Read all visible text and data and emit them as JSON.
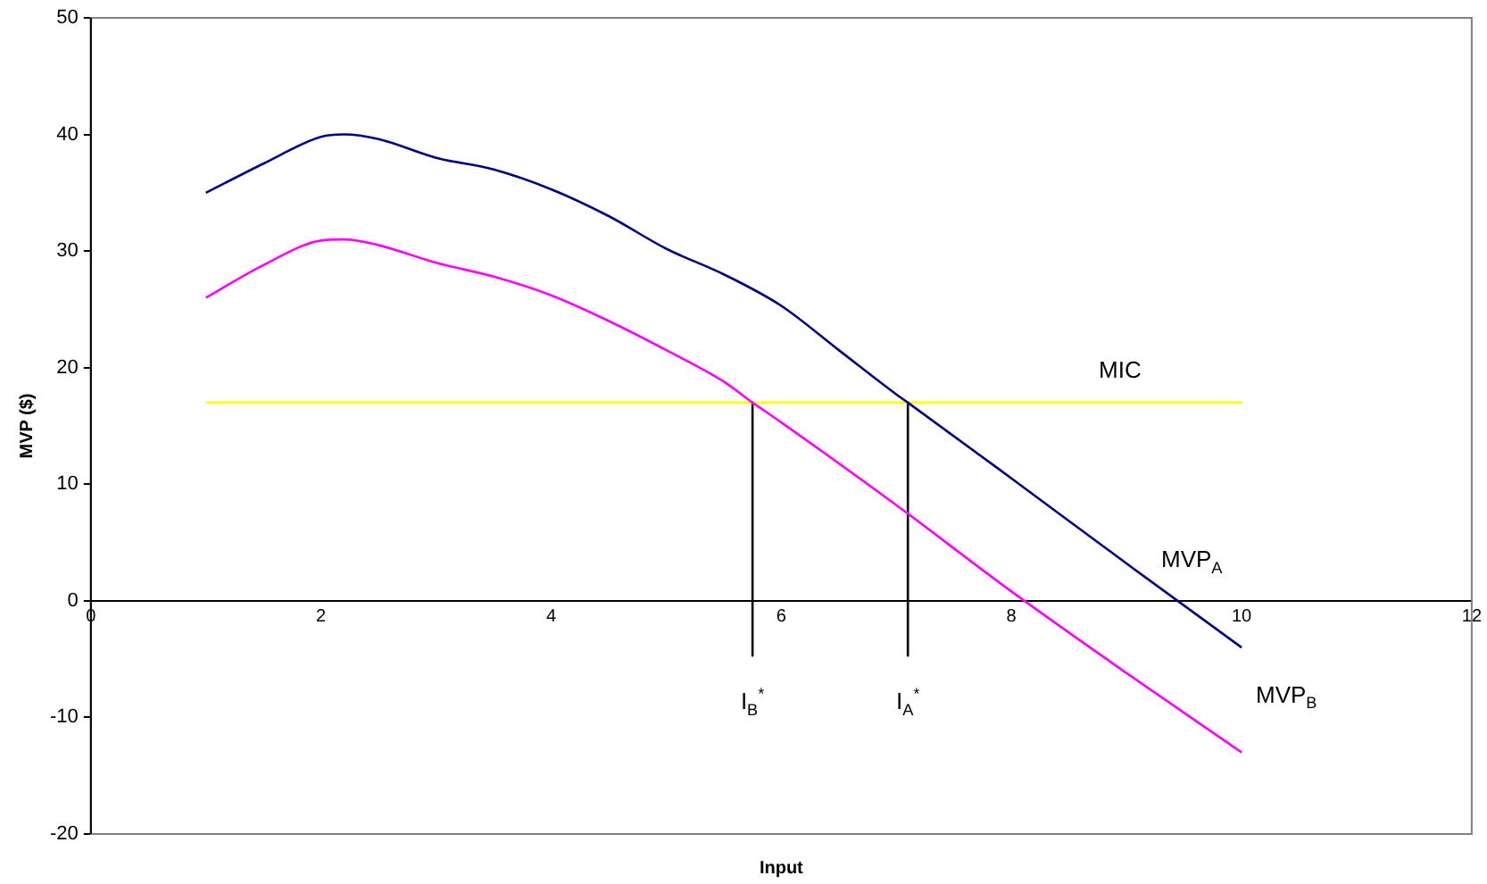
{
  "chart_data": {
    "type": "line",
    "xlabel": "Input",
    "ylabel": "MVP ($)",
    "xlim": [
      0,
      12
    ],
    "xticks": [
      0,
      2,
      4,
      6,
      8,
      10,
      12
    ],
    "ylim": [
      -20,
      50
    ],
    "yticks": [
      -20,
      -10,
      0,
      10,
      20,
      30,
      40,
      50
    ],
    "grid": false,
    "legend": false,
    "marker": "none",
    "series": [
      {
        "name": "MVP$_{A}$",
        "color": "#000080",
        "x": [
          1,
          1.5,
          2,
          2.2,
          2.5,
          3,
          3.5,
          4,
          4.5,
          5,
          5.5,
          6,
          6.5,
          7,
          7.1,
          8,
          9,
          10
        ],
        "values": [
          35,
          37.5,
          39.8,
          40,
          39.6,
          38,
          37,
          35.3,
          33,
          30.2,
          28,
          25.3,
          21.5,
          17.7,
          17,
          10.5,
          3.2,
          -4
        ]
      },
      {
        "name": "MVP$_{B}$",
        "color": "#ff00ff",
        "x": [
          1,
          1.5,
          2,
          2.2,
          2.5,
          3,
          3.5,
          4,
          4.5,
          5,
          5.5,
          5.75,
          6,
          7,
          8,
          9,
          10
        ],
        "values": [
          26,
          28.8,
          30.9,
          31,
          30.5,
          29,
          27.8,
          26.2,
          24,
          21.5,
          18.8,
          17,
          15.3,
          8.2,
          0.8,
          -6.2,
          -13
        ]
      },
      {
        "name": "MIC",
        "color": "#ffff00",
        "x": [
          1,
          10
        ],
        "values": [
          17,
          17
        ]
      },
      {
        "type": "line",
        "color": "#000000",
        "x": [
          5.75,
          5.75
        ],
        "values": [
          17,
          -4.7
        ]
      },
      {
        "type": "line",
        "color": "#000000",
        "x": [
          7.1,
          7.1
        ],
        "values": [
          17,
          -4.7
        ]
      }
    ],
    "annotations": [
      "I$_{B}$$^{*}$",
      "I$_{A}$$^{*}$"
    ]
  }
}
